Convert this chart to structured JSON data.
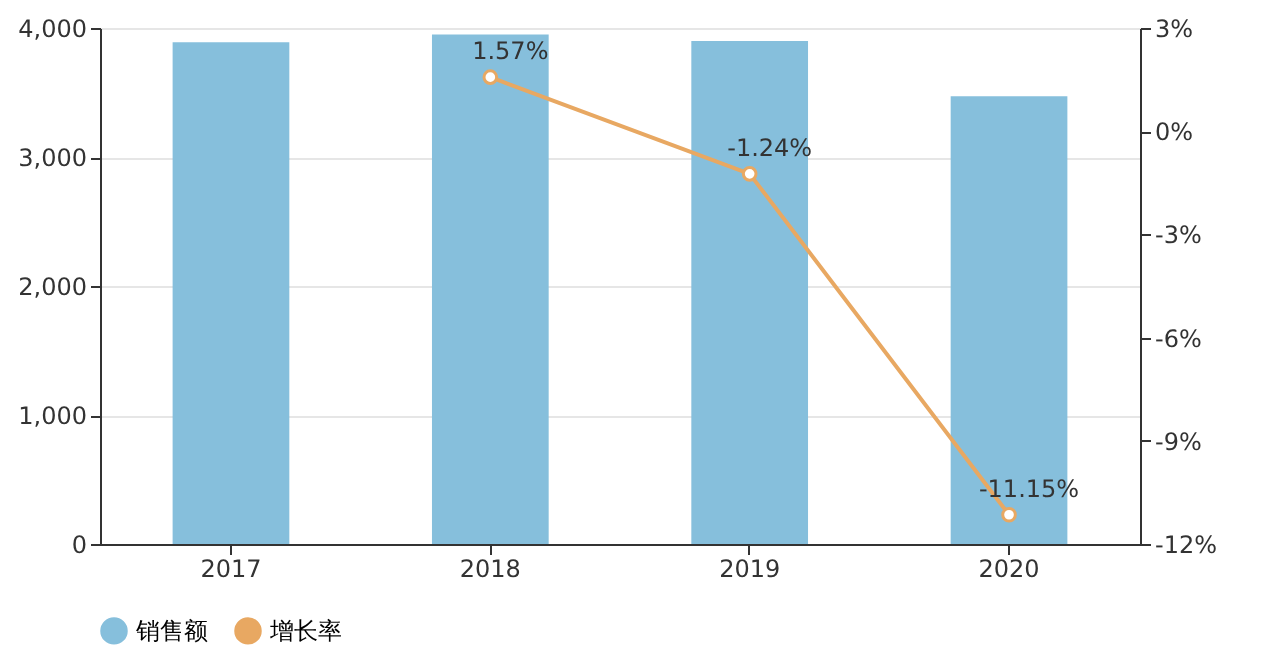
{
  "chart_data": {
    "type": "bar",
    "categories": [
      "2017",
      "2018",
      "2019",
      "2020"
    ],
    "series": [
      {
        "name": "销售额",
        "color": "#86bfdc",
        "values": [
          3890,
          3950,
          3900,
          3470
        ]
      },
      {
        "name": "增长率",
        "type": "line",
        "axis": "y2",
        "color": "#e8a862",
        "values": [
          null,
          1.57,
          -1.24,
          -11.15
        ],
        "value_labels": [
          null,
          "1.57%",
          "-1.24%",
          "-11.15%"
        ]
      }
    ],
    "ylim": [
      0,
      4000
    ],
    "yticks": [
      {
        "value": 0,
        "label": "0"
      },
      {
        "value": 1000,
        "label": "1,000"
      },
      {
        "value": 2000,
        "label": "2,000"
      },
      {
        "value": 3000,
        "label": "3,000"
      },
      {
        "value": 4000,
        "label": "4,000"
      }
    ],
    "y2lim": [
      -12,
      3
    ],
    "y2ticks": [
      {
        "value": -12,
        "label": "-12%"
      },
      {
        "value": -9,
        "label": "-9%"
      },
      {
        "value": -6,
        "label": "-6%"
      },
      {
        "value": -3,
        "label": "-3%"
      },
      {
        "value": 0,
        "label": "0%"
      },
      {
        "value": 3,
        "label": "3%"
      }
    ],
    "grid": "y",
    "legend": "bottom",
    "marker": "circle",
    "line_style": "solid"
  }
}
